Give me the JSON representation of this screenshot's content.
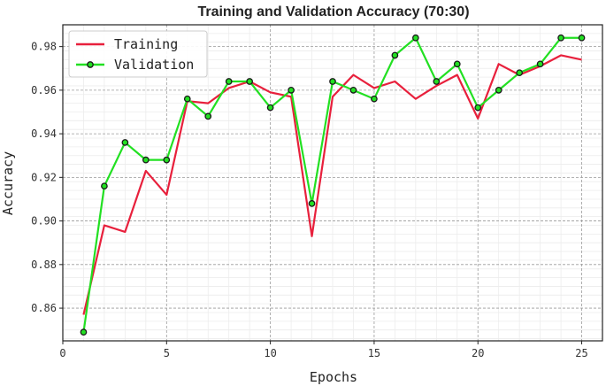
{
  "chart_data": {
    "type": "line",
    "title": "Training and Validation Accuracy (70:30)",
    "xlabel": "Epochs",
    "ylabel": "Accuracy",
    "xlim": [
      0,
      26
    ],
    "ylim": [
      0.845,
      0.99
    ],
    "xticks": [
      0,
      5,
      10,
      15,
      20,
      25
    ],
    "xtick_labels": [
      "0",
      "5",
      "10",
      "15",
      "20",
      "25"
    ],
    "yticks": [
      0.86,
      0.88,
      0.9,
      0.92,
      0.94,
      0.96,
      0.98
    ],
    "ytick_labels": [
      "0.86",
      "0.88",
      "0.90",
      "0.92",
      "0.94",
      "0.96",
      "0.98"
    ],
    "grid": true,
    "legend_position": "top-left",
    "x": [
      1,
      2,
      3,
      4,
      5,
      6,
      7,
      8,
      9,
      10,
      11,
      12,
      13,
      14,
      15,
      16,
      17,
      18,
      19,
      20,
      21,
      22,
      23,
      24,
      25
    ],
    "series": [
      {
        "name": "Training",
        "color": "#e8203c",
        "marker": "none",
        "values": [
          0.857,
          0.898,
          0.895,
          0.923,
          0.912,
          0.955,
          0.954,
          0.961,
          0.964,
          0.959,
          0.957,
          0.893,
          0.957,
          0.967,
          0.961,
          0.964,
          0.956,
          0.962,
          0.967,
          0.947,
          0.972,
          0.967,
          0.971,
          0.976,
          0.974
        ]
      },
      {
        "name": "Validation",
        "color": "#22e022",
        "marker": "circle",
        "values": [
          0.849,
          0.916,
          0.936,
          0.928,
          0.928,
          0.956,
          0.948,
          0.964,
          0.964,
          0.952,
          0.96,
          0.908,
          0.964,
          0.96,
          0.956,
          0.976,
          0.984,
          0.964,
          0.972,
          0.952,
          0.96,
          0.968,
          0.972,
          0.984,
          0.984
        ]
      }
    ]
  }
}
